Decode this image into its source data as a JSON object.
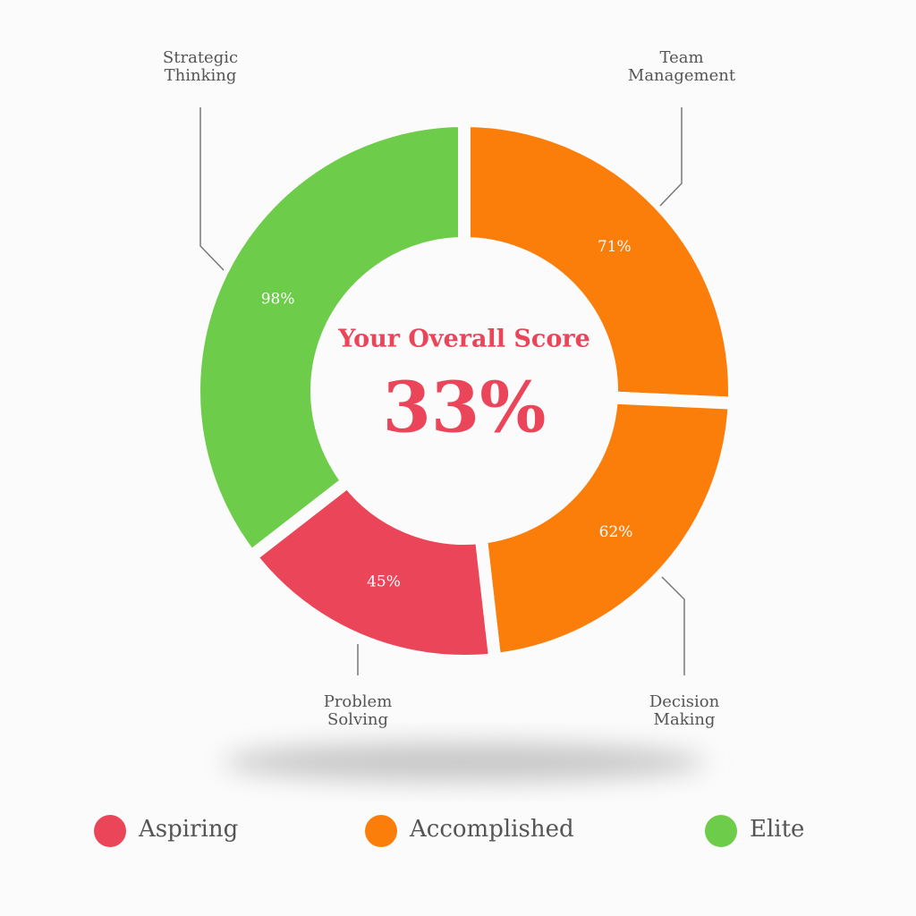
{
  "chart_data": {
    "type": "donut",
    "center_title": "Your Overall Score",
    "center_score": 33,
    "center_score_label": "33%",
    "categories": [
      "Team Management",
      "Decision Making",
      "Problem Solving",
      "Strategic Thinking"
    ],
    "values": [
      71,
      62,
      45,
      98
    ],
    "value_labels": [
      "71%",
      "62%",
      "45%",
      "98%"
    ],
    "colors": [
      "#fb7e0a",
      "#fb7e0a",
      "#ea4558",
      "#6dcc4a"
    ],
    "legend": [
      {
        "name": "Aspiring",
        "color": "#ea4558"
      },
      {
        "name": "Accomplished",
        "color": "#fb7e0a"
      },
      {
        "name": "Elite",
        "color": "#6dcc4a"
      }
    ]
  }
}
